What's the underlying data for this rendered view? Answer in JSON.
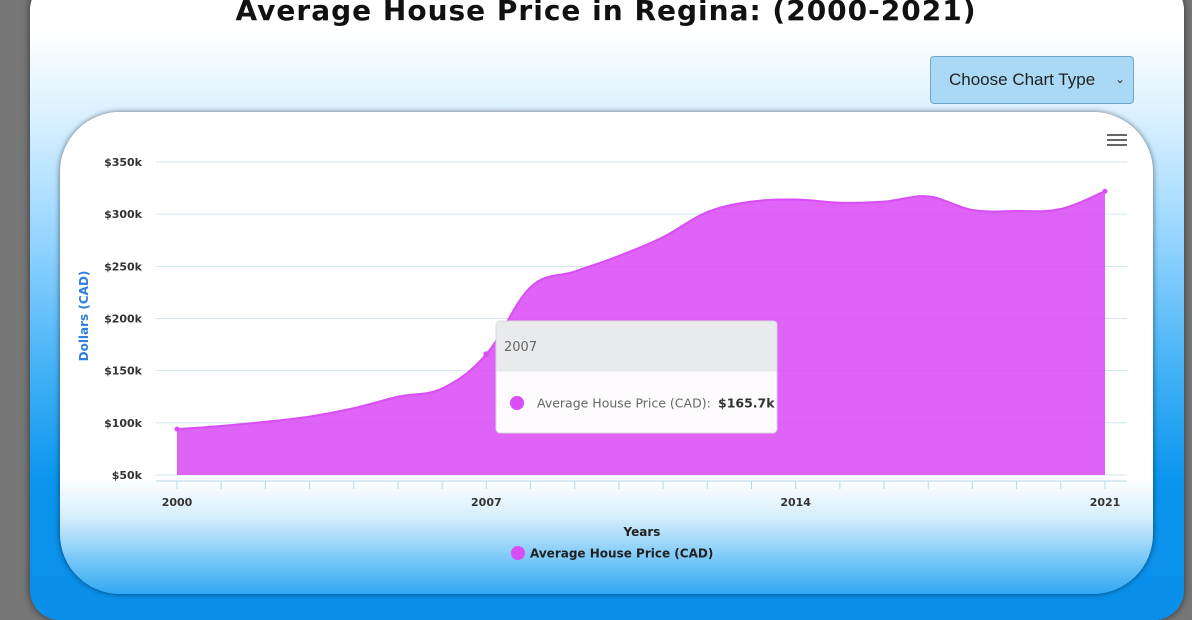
{
  "title": "Average House Price in Regina: (2000-2021)",
  "chart_type_select": {
    "selected": "Choose Chart Type"
  },
  "chart_data": {
    "type": "area",
    "title": "Average House Price in Regina: (2000-2021)",
    "xlabel": "Years",
    "ylabel": "Dollars (CAD)",
    "ylim": [
      50,
      350
    ],
    "ytick_values": [
      50,
      100,
      150,
      200,
      250,
      300,
      350
    ],
    "ytick_labels": [
      "$50k",
      "$100k",
      "$150k",
      "$200k",
      "$250k",
      "$300k",
      "$350k"
    ],
    "xtick_values": [
      2000,
      2007,
      2014,
      2021
    ],
    "xtick_labels": [
      "2000",
      "2007",
      "2014",
      "2021"
    ],
    "legend_position": "bottom-center",
    "color": "#d94df5",
    "series": [
      {
        "name": "Average House Price (CAD)",
        "x": [
          2000,
          2001,
          2002,
          2003,
          2004,
          2005,
          2006,
          2007,
          2008,
          2009,
          2010,
          2011,
          2012,
          2013,
          2014,
          2015,
          2016,
          2017,
          2018,
          2019,
          2020,
          2021
        ],
        "values": [
          94,
          97,
          101,
          106,
          114,
          125,
          133,
          165.7,
          230,
          245,
          260,
          278,
          302,
          312,
          314,
          311,
          312,
          317,
          304,
          303,
          305,
          322
        ]
      }
    ],
    "tooltip": {
      "header": "2007",
      "series_label": "Average House Price (CAD):",
      "value_label": "$165.7k"
    }
  }
}
